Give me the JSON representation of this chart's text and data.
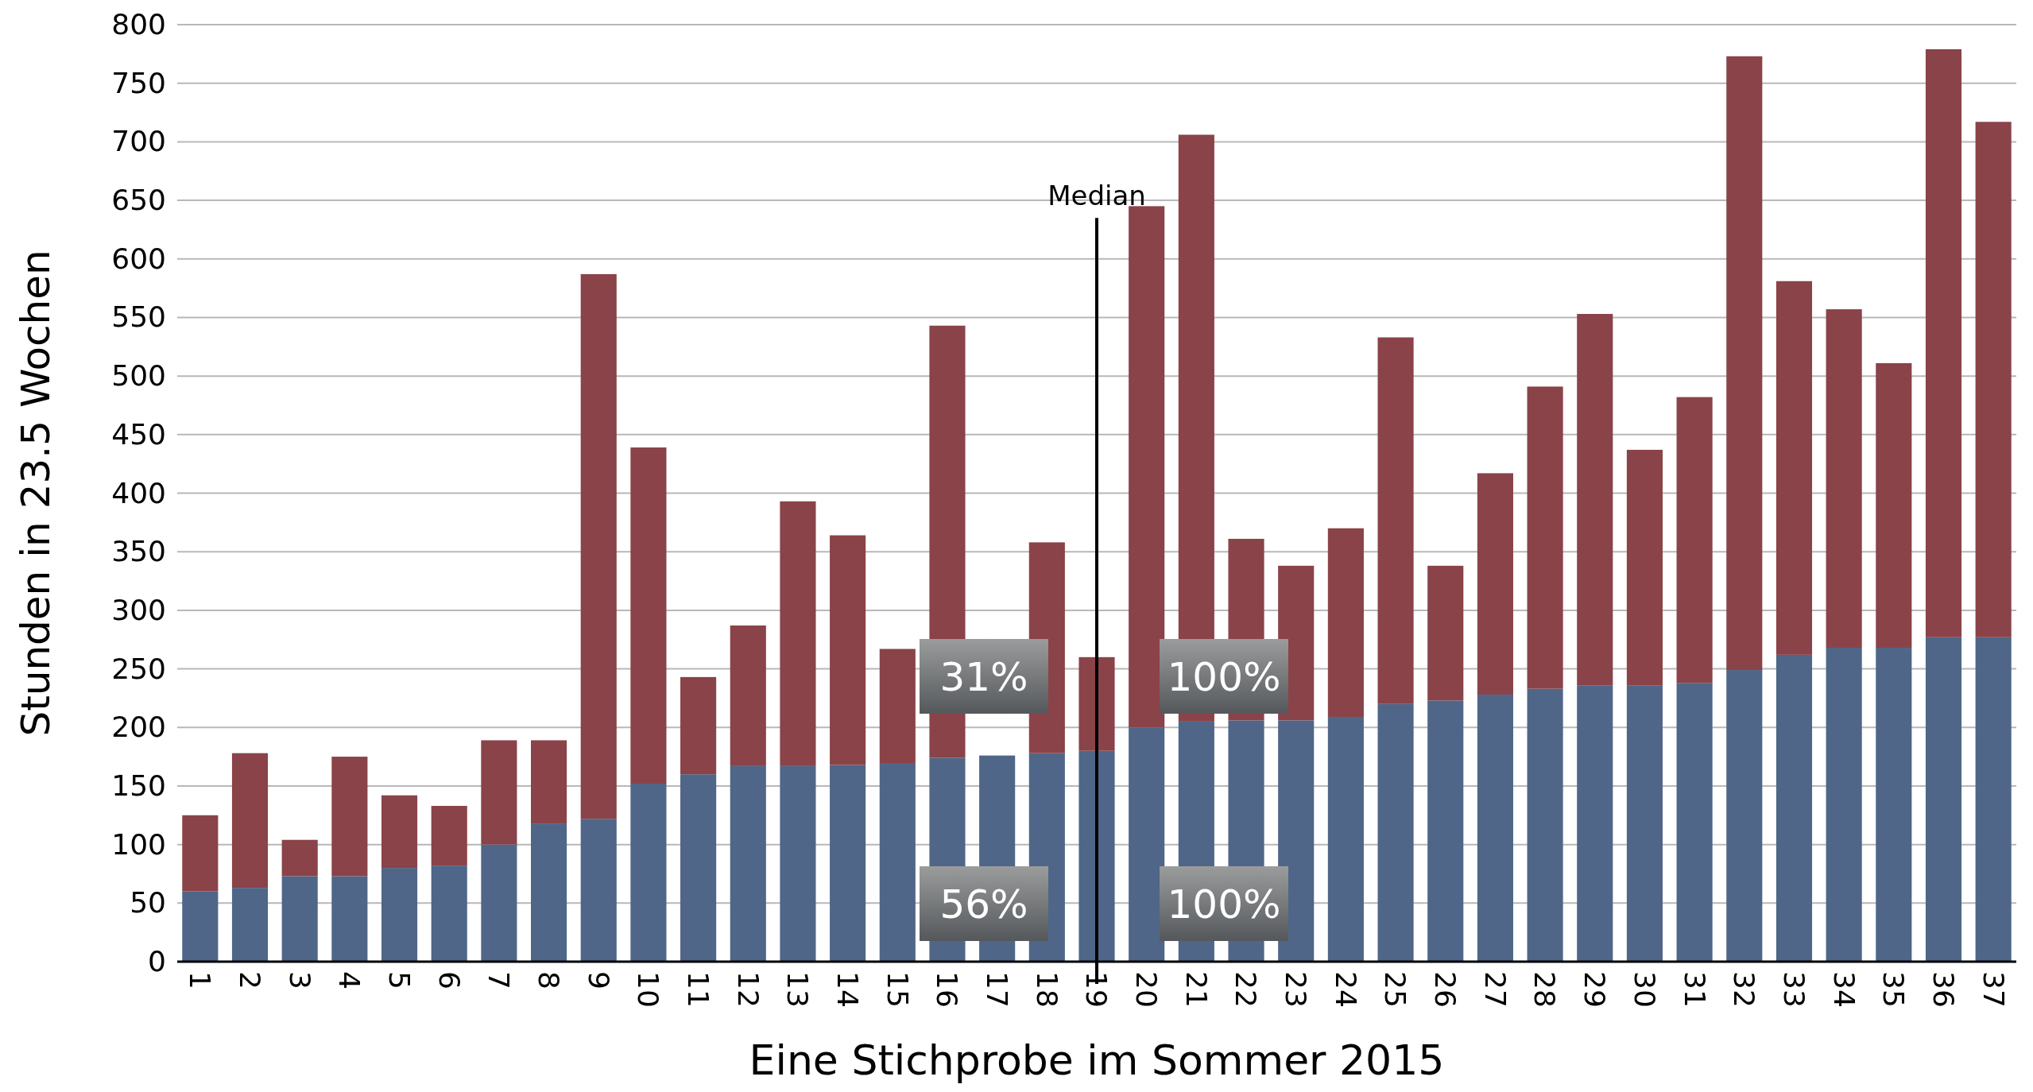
{
  "chart_data": {
    "type": "bar",
    "stacked": true,
    "xlabel": "Eine Stichprobe im Sommer 2015",
    "ylabel": "Stunden in 23.5 Wochen",
    "categories": [
      "1",
      "2",
      "3",
      "4",
      "5",
      "6",
      "7",
      "8",
      "9",
      "10",
      "11",
      "12",
      "13",
      "14",
      "15",
      "16",
      "17",
      "18",
      "19",
      "20",
      "21",
      "22",
      "23",
      "24",
      "25",
      "26",
      "27",
      "28",
      "29",
      "30",
      "31",
      "32",
      "33",
      "34",
      "35",
      "36",
      "37"
    ],
    "series": [
      {
        "color": "#4f6688",
        "values": [
          60,
          63,
          73,
          73,
          80,
          82,
          100,
          118,
          122,
          152,
          160,
          167,
          167,
          168,
          169,
          174,
          176,
          178,
          180,
          200,
          205,
          206,
          206,
          209,
          220,
          223,
          228,
          233,
          236,
          236,
          238,
          249,
          262,
          268,
          268,
          277,
          277
        ]
      },
      {
        "color": "#8a4348",
        "values": [
          65,
          115,
          31,
          102,
          62,
          51,
          89,
          71,
          465,
          287,
          83,
          120,
          226,
          196,
          98,
          369,
          null,
          180,
          80,
          445,
          501,
          155,
          132,
          161,
          313,
          115,
          189,
          258,
          317,
          201,
          244,
          524,
          319,
          289,
          243,
          502,
          440
        ]
      }
    ],
    "ylim": [
      0,
      800
    ],
    "yticks": [
      0,
      50,
      100,
      150,
      200,
      250,
      300,
      350,
      400,
      450,
      500,
      550,
      600,
      650,
      700,
      750,
      800
    ],
    "grid": "y",
    "ref_lines": [
      {
        "axis": "x",
        "value": "19",
        "label": "Median",
        "color": "#000000"
      }
    ],
    "annotations": [
      "31%",
      "100%",
      "56%",
      "100%"
    ]
  }
}
